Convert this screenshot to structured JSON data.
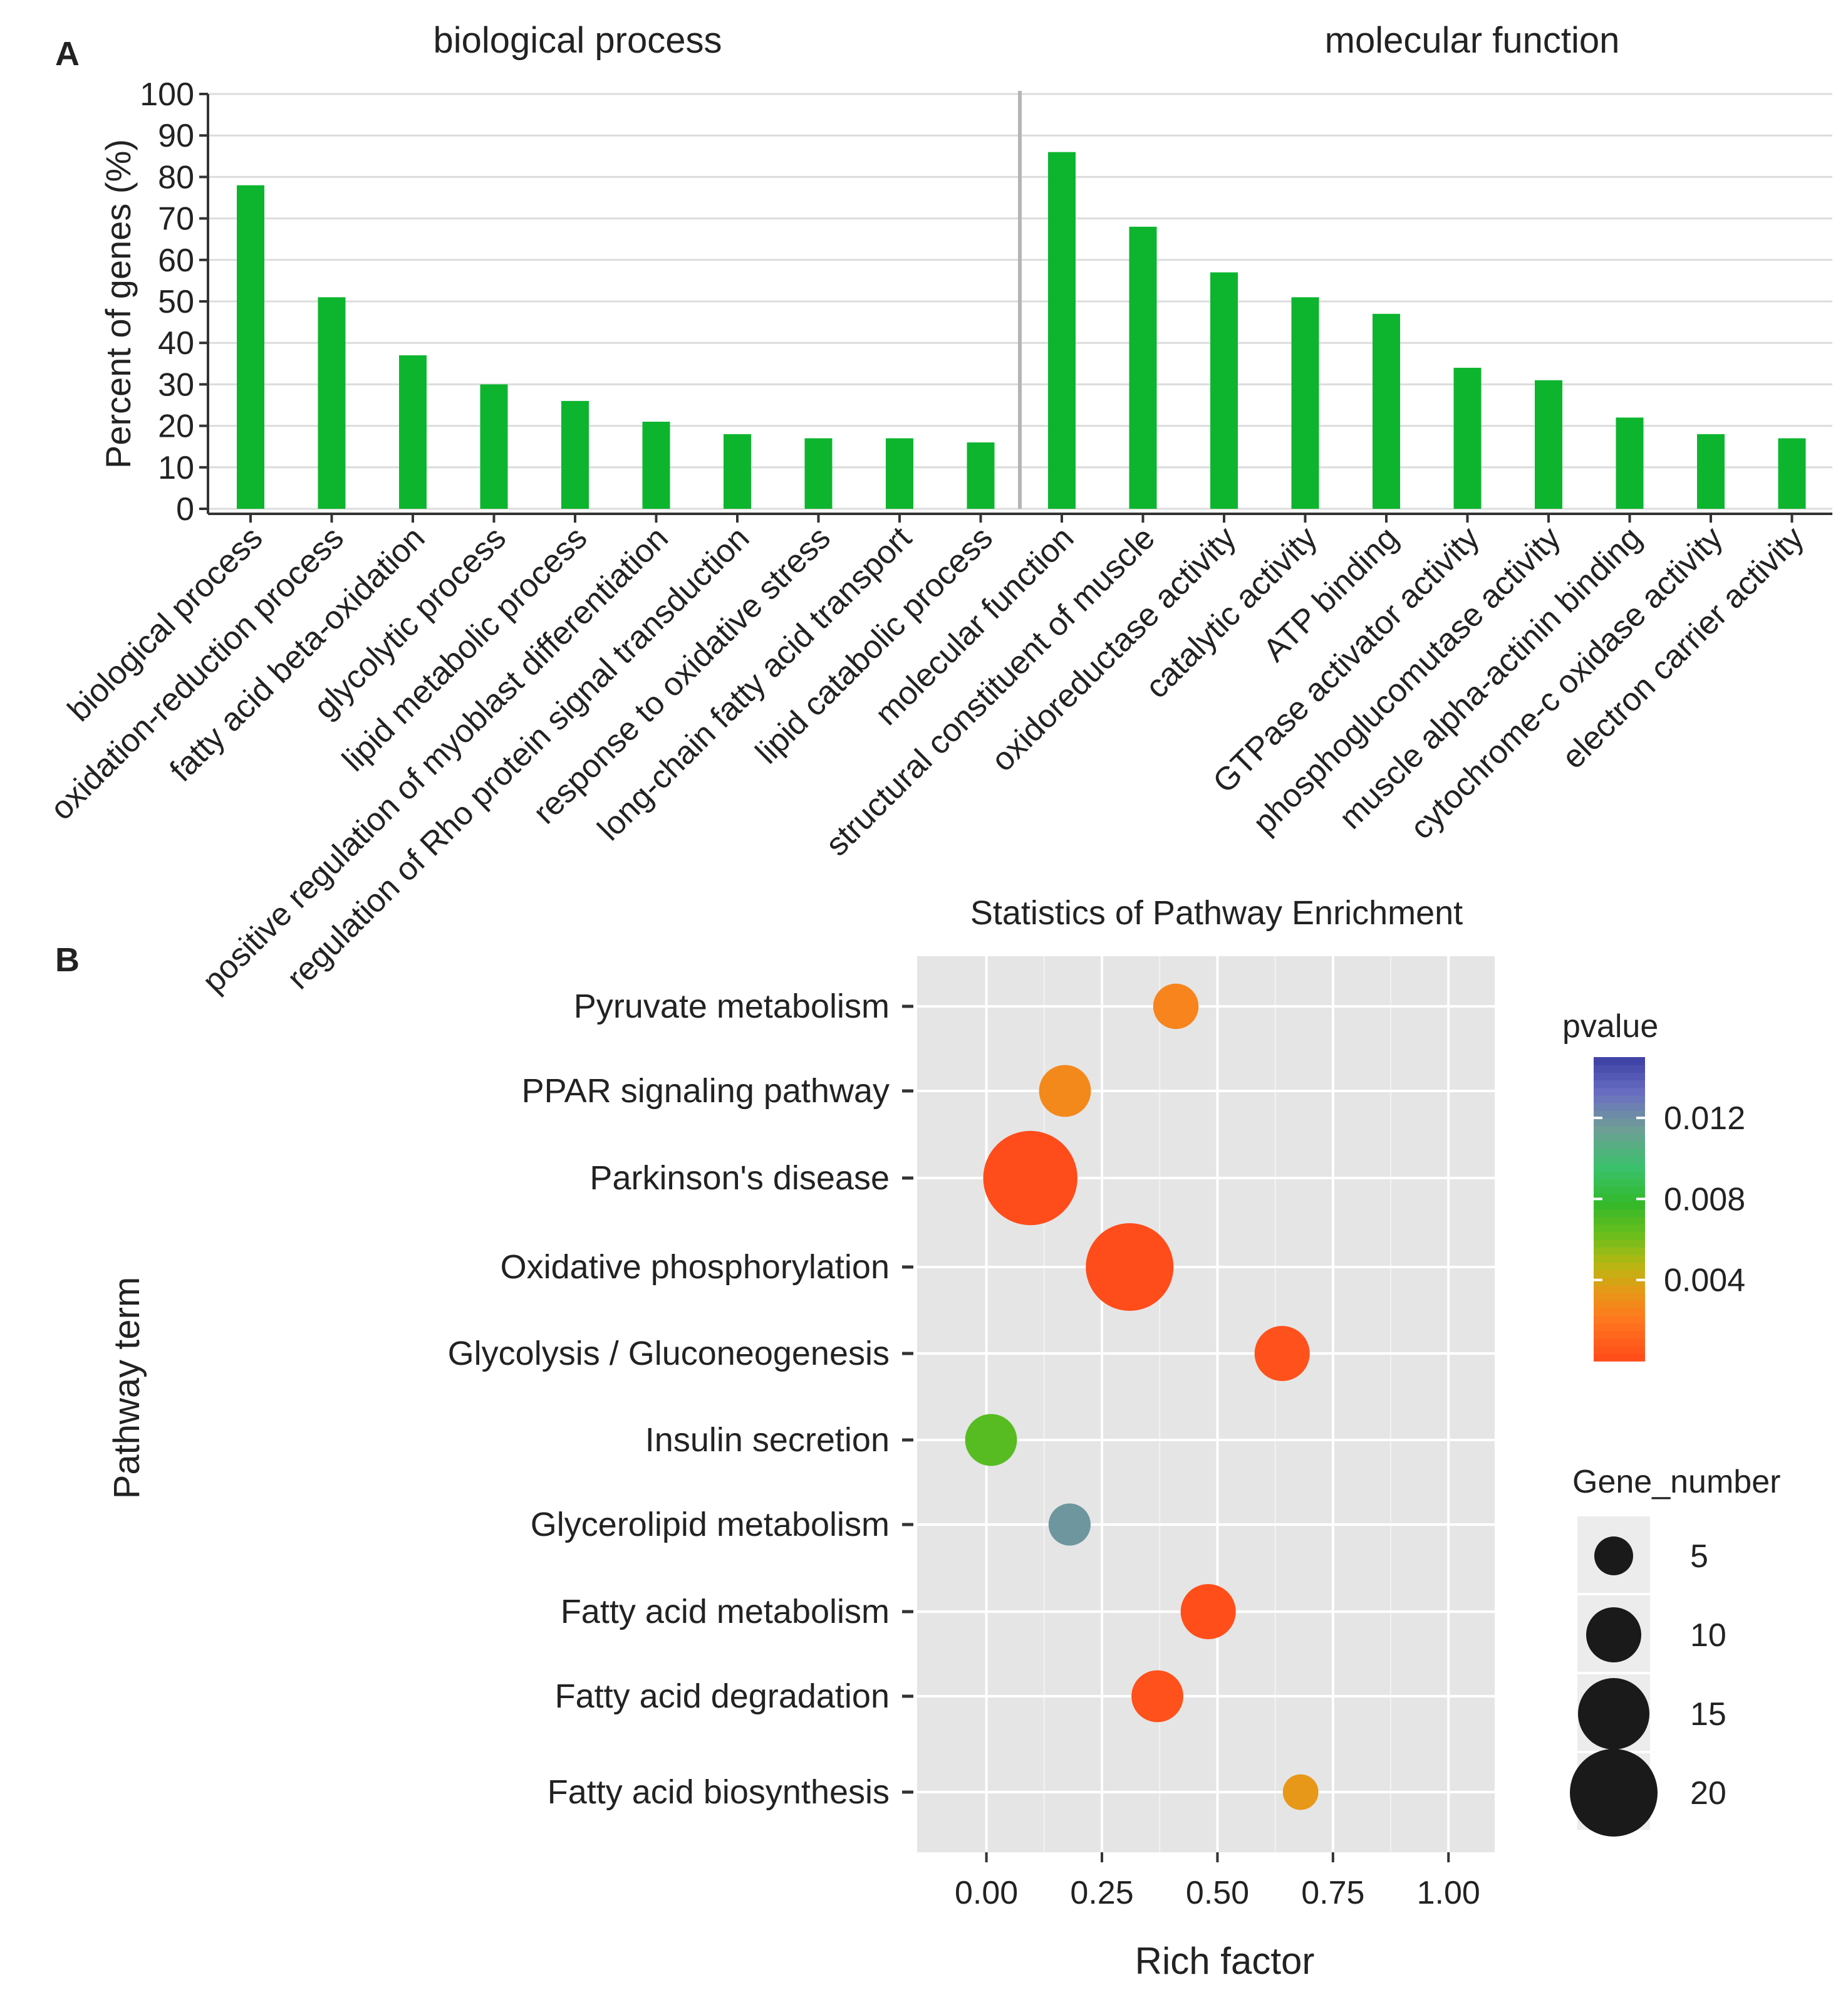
{
  "panel_labels": {
    "a": "A",
    "b": "B"
  },
  "colors": {
    "bar": "#0db52e",
    "panel_bg": "#e5e5e5",
    "grid": "#ffffff",
    "axis": "#333333",
    "divider": "#b5b5b5",
    "text": "#222222"
  },
  "chart_data": [
    {
      "type": "bar",
      "panel": "A",
      "facets": [
        {
          "title": "biological process",
          "categories": [
            "biological process",
            "oxidation-reduction process",
            "fatty acid beta-oxidation",
            "glycolytic process",
            "lipid metabolic process",
            "positive regulation of myoblast differentiation",
            "regulation of Rho protein signal transduction",
            "response to oxidative stress",
            "long-chain fatty acid transport",
            "lipid catabolic process"
          ],
          "values": [
            78,
            51,
            37,
            30,
            26,
            21,
            18,
            17,
            17,
            16
          ]
        },
        {
          "title": "molecular function",
          "categories": [
            "molecular function",
            "structural constituent of muscle",
            "oxidoreductase activity",
            "catalytic activity",
            "ATP binding",
            "GTPase activator activity",
            "phosphoglucomutase activity",
            "muscle alpha-actinin binding",
            "cytochrome-c oxidase activity",
            "electron carrier activity"
          ],
          "values": [
            86,
            68,
            57,
            51,
            47,
            34,
            31,
            22,
            18,
            17
          ]
        }
      ],
      "ylabel": "Percent of genes (%)",
      "ylim": [
        0,
        100
      ],
      "yticks": [
        0,
        10,
        20,
        30,
        40,
        50,
        60,
        70,
        80,
        90,
        100
      ]
    },
    {
      "type": "scatter",
      "panel": "B",
      "title": "Statistics of Pathway Enrichment",
      "xlabel": "Rich factor",
      "ylabel": "Pathway term",
      "xlim": [
        -0.15,
        1.1
      ],
      "xticks": [
        0,
        0.25,
        0.5,
        0.75,
        1.0
      ],
      "xtick_labels": [
        "0.00",
        "0.25",
        "0.50",
        "0.75",
        "1.00"
      ],
      "points": [
        {
          "term": "Pyruvate metabolism",
          "rich_factor": 0.41,
          "gene_number": 7,
          "pvalue": 0.0026
        },
        {
          "term": "PPAR signaling pathway",
          "rich_factor": 0.17,
          "gene_number": 9,
          "pvalue": 0.0028
        },
        {
          "term": "Parkinson's disease",
          "rich_factor": 0.095,
          "gene_number": 22,
          "pvalue": 0.0001
        },
        {
          "term": "Oxidative phosphorylation",
          "rich_factor": 0.31,
          "gene_number": 20,
          "pvalue": 0.0001
        },
        {
          "term": "Glycolysis / Gluconeogenesis",
          "rich_factor": 0.64,
          "gene_number": 10,
          "pvalue": 0.0003
        },
        {
          "term": "Insulin secretion",
          "rich_factor": 0.01,
          "gene_number": 9,
          "pvalue": 0.0068
        },
        {
          "term": "Glycerolipid metabolism",
          "rich_factor": 0.18,
          "gene_number": 6,
          "pvalue": 0.0118
        },
        {
          "term": "Fatty acid metabolism",
          "rich_factor": 0.48,
          "gene_number": 10,
          "pvalue": 0.0002
        },
        {
          "term": "Fatty acid degradation",
          "rich_factor": 0.37,
          "gene_number": 9,
          "pvalue": 0.0003
        },
        {
          "term": "Fatty acid biosynthesis",
          "rich_factor": 0.68,
          "gene_number": 4,
          "pvalue": 0.0034
        }
      ],
      "legend_color": {
        "title": "pvalue",
        "ticks": [
          0.012,
          0.008,
          0.004
        ],
        "tick_labels": [
          "0.012",
          "0.008",
          "0.004"
        ],
        "range": [
          0.0,
          0.015
        ],
        "stops": [
          {
            "v": 0.0,
            "color": "#ff4a1a"
          },
          {
            "v": 0.0022,
            "color": "#ff7a1e"
          },
          {
            "v": 0.0035,
            "color": "#e59a17"
          },
          {
            "v": 0.0048,
            "color": "#b6b812"
          },
          {
            "v": 0.0062,
            "color": "#6cbe1c"
          },
          {
            "v": 0.0078,
            "color": "#33b82a"
          },
          {
            "v": 0.0095,
            "color": "#39c26b"
          },
          {
            "v": 0.0115,
            "color": "#6f9e96"
          },
          {
            "v": 0.0132,
            "color": "#6a6fc2"
          },
          {
            "v": 0.015,
            "color": "#3b3fa4"
          }
        ]
      },
      "legend_size": {
        "title": "Gene_number",
        "values": [
          5,
          10,
          15,
          20
        ],
        "labels": [
          "5",
          "10",
          "15",
          "20"
        ]
      }
    }
  ]
}
